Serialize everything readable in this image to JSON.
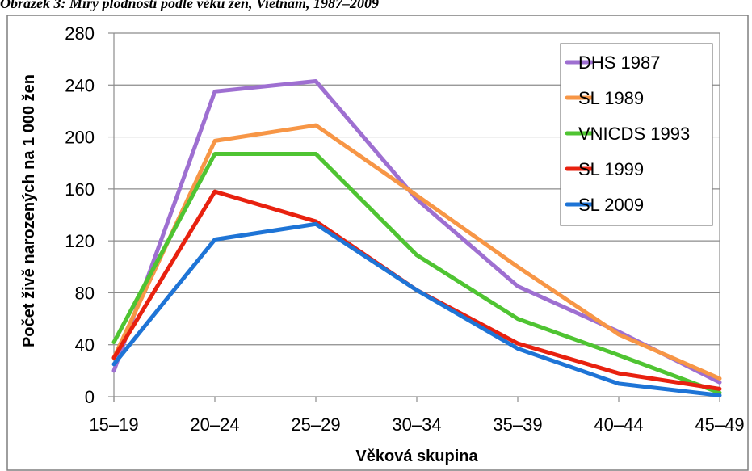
{
  "caption": "Obrázek 3: Míry plodnosti podle věku žen, Vietnam, 1987–2009",
  "chart_data": {
    "type": "line",
    "title": "",
    "xlabel": "Věková skupina",
    "ylabel": "Počet živě narozených na 1 000 žen",
    "categories": [
      "15–19",
      "20–24",
      "25–29",
      "30–34",
      "35–39",
      "40–44",
      "45–49"
    ],
    "ylim": [
      0,
      280
    ],
    "yticks": [
      0,
      40,
      80,
      120,
      160,
      200,
      240,
      280
    ],
    "grid": true,
    "legend_position": "top-right",
    "series": [
      {
        "name": "DHS 1987",
        "color": "#9E6FD1",
        "values": [
          20,
          235,
          243,
          152,
          85,
          50,
          11
        ]
      },
      {
        "name": "SL 1989",
        "color": "#F79646",
        "values": [
          30,
          197,
          209,
          155,
          100,
          48,
          14
        ]
      },
      {
        "name": "VNICDS 1993",
        "color": "#4FC432",
        "values": [
          42,
          187,
          187,
          109,
          60,
          32,
          3
        ]
      },
      {
        "name": "SL 1999",
        "color": "#E8210F",
        "values": [
          30,
          158,
          135,
          82,
          41,
          18,
          6
        ]
      },
      {
        "name": "SL 2009",
        "color": "#1E74D6",
        "values": [
          25,
          121,
          133,
          82,
          37,
          10,
          1
        ]
      }
    ]
  }
}
